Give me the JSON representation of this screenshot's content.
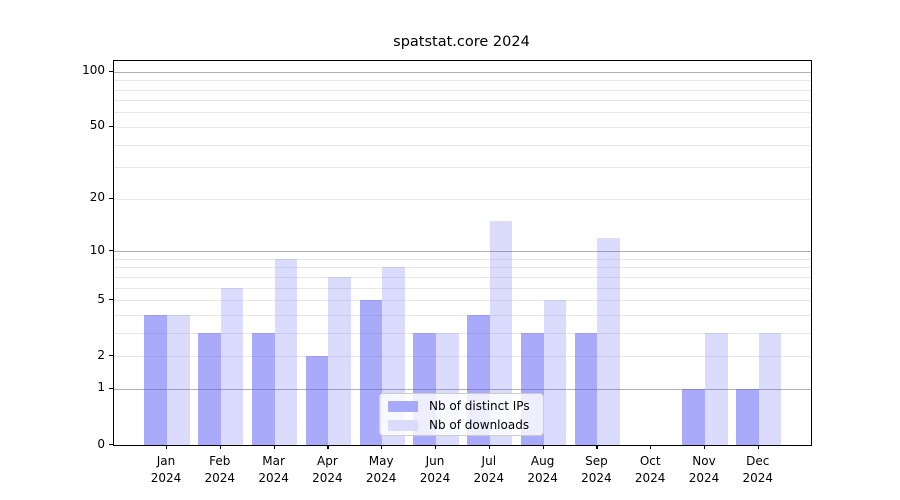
{
  "chart_data": {
    "type": "bar",
    "title": "spatstat.core 2024",
    "categories": [
      "Jan",
      "Feb",
      "Mar",
      "Apr",
      "May",
      "Jun",
      "Jul",
      "Aug",
      "Sep",
      "Oct",
      "Nov",
      "Dec"
    ],
    "year_label": "2024",
    "series": [
      {
        "name": "Nb of distinct IPs",
        "values": [
          4,
          3,
          3,
          2,
          5,
          3,
          4,
          3,
          3,
          0,
          1,
          1
        ],
        "color": "rgba(85,85,245,0.50)",
        "legend_color": "#a9a9f9"
      },
      {
        "name": "Nb of downloads",
        "values": [
          4,
          6,
          9,
          7,
          8,
          3,
          15,
          5,
          12,
          0,
          3,
          3
        ],
        "color": "rgba(85,85,245,0.21)",
        "legend_color": "#dbdbfb"
      }
    ],
    "yscale": "log1p",
    "ylim": [
      0,
      114
    ],
    "y_ticks": [
      0,
      1,
      2,
      5,
      10,
      20,
      50,
      100
    ],
    "y_major_gridlines": [
      1,
      10,
      100
    ],
    "y_minor_gridlines": [
      2,
      3,
      4,
      5,
      6,
      7,
      8,
      9,
      20,
      30,
      40,
      50,
      60,
      70,
      80,
      90
    ],
    "grid": true,
    "legend_position": "lower center",
    "xlabel": "",
    "ylabel": ""
  },
  "colors": {
    "background": "#ffffff",
    "axis": "#000000",
    "grid_major": "#b0b0b0",
    "grid_minor": "#e7e7e7",
    "text": "#000000",
    "legend_border": "#cccccc"
  }
}
